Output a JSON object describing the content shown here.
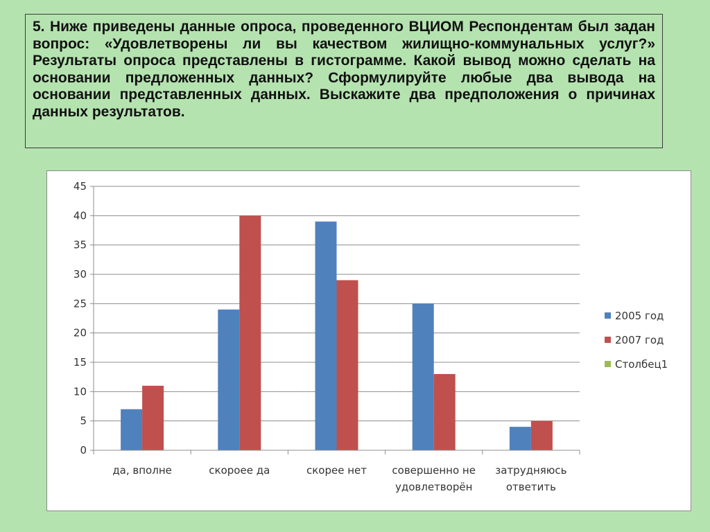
{
  "question": {
    "text": "5. Ниже приведены данные опроса, проведенного ВЦИОМ Респондентам был задан вопрос: «Удовлетворены ли вы качеством жилищно-коммунальных услуг?» Результаты опроса представлены в гистограмме. Какой вывод можно сделать на основании предложенных данных? Сформулируйте любые два вывода на основании представленных данных. Выскажите два предположения о причинах данных результатов."
  },
  "chart_data": {
    "type": "bar",
    "title": "",
    "xlabel": "",
    "ylabel": "",
    "categories": [
      [
        "да, вполне"
      ],
      [
        "скороее да"
      ],
      [
        "скорее нет"
      ],
      [
        "совершенно не",
        "удовлетворён"
      ],
      [
        "затрудняюсь",
        "ответить"
      ]
    ],
    "series": [
      {
        "name": "2005 год",
        "color": "#4f81bd",
        "values": [
          7,
          24,
          39,
          25,
          4
        ]
      },
      {
        "name": "2007 год",
        "color": "#c0504d",
        "values": [
          11,
          40,
          29,
          13,
          5
        ]
      },
      {
        "name": "Столбец1",
        "color": "#9bbb59",
        "values": [
          0,
          0,
          0,
          0,
          0
        ]
      }
    ],
    "ylim": [
      0,
      45
    ],
    "yticks": [
      0,
      5,
      10,
      15,
      20,
      25,
      30,
      35,
      40,
      45
    ],
    "grid": true,
    "legend_position": "right"
  }
}
